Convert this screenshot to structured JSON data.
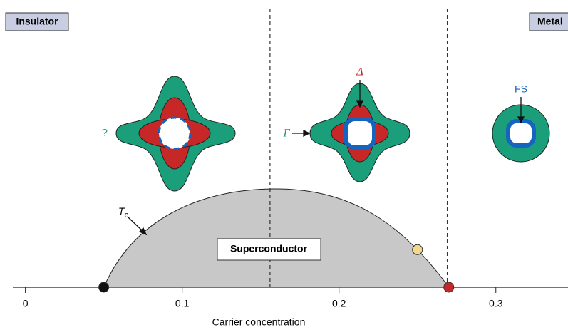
{
  "chart_data": {
    "type": "phase-diagram",
    "regions": {
      "left": "Insulator",
      "right": "Metal",
      "dome": "Superconductor"
    },
    "tc_label": {
      "main": "T",
      "sub": "c"
    },
    "inset_labels": {
      "unknown": "?",
      "gamma": "Γ",
      "delta": "Δ",
      "fermi_surface": "FS"
    },
    "xlabel": "Carrier concentration",
    "xlim": [
      -0.008,
      0.346
    ],
    "xticks": [
      0,
      0.1,
      0.2,
      0.3
    ],
    "dividers": [
      0.156,
      0.269
    ],
    "markers": [
      {
        "x": 0.05,
        "color": "#111111"
      },
      {
        "x": 0.25,
        "color": "#f5d98a"
      },
      {
        "x": 0.27,
        "color": "#c62828"
      }
    ],
    "dome_color": "#c8c8c8"
  }
}
